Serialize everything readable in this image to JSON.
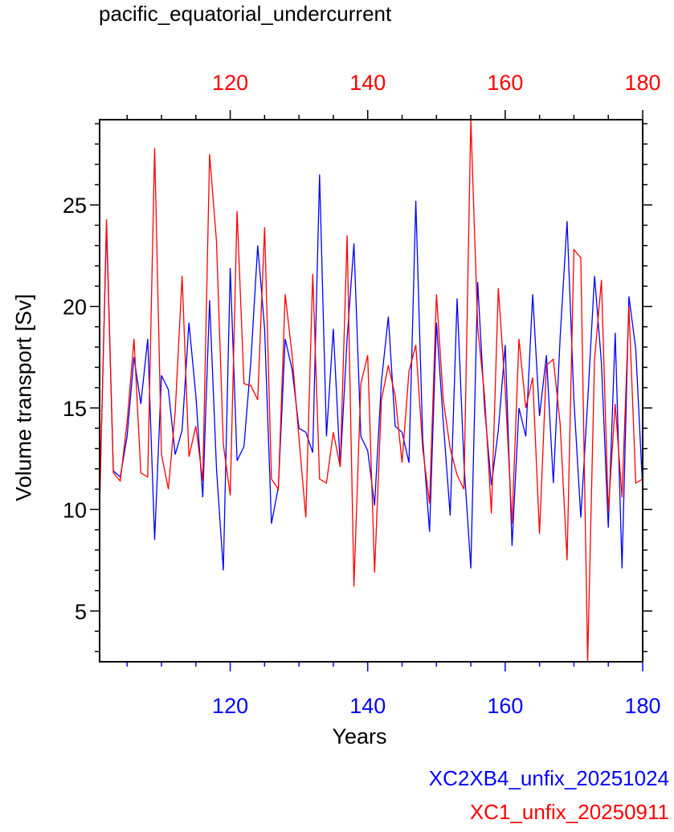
{
  "chart_data": {
    "type": "line",
    "title": "pacific_equatorial_undercurrent",
    "xlabel": "Years",
    "ylabel": "Volume transport [Sv]",
    "xlim": [
      101,
      180
    ],
    "ylim": [
      2.5,
      29.2
    ],
    "yticks": [
      5,
      10,
      15,
      20,
      25
    ],
    "xticks": [
      120,
      140,
      160,
      180
    ],
    "top_xticks": [
      120,
      140,
      160,
      180
    ],
    "top_axis_color": "#ff0000",
    "bottom_axis_color": "#0000ff",
    "series": [
      {
        "name": "XC2XB4_unfix_20251024",
        "color": "#0000ff",
        "x": [
          101,
          102,
          103,
          104,
          105,
          106,
          107,
          108,
          109,
          110,
          111,
          112,
          113,
          114,
          115,
          116,
          117,
          118,
          119,
          120,
          121,
          122,
          123,
          124,
          125,
          126,
          127,
          128,
          129,
          130,
          131,
          132,
          133,
          134,
          135,
          136,
          137,
          138,
          139,
          140,
          141,
          142,
          143,
          144,
          145,
          146,
          147,
          148,
          149,
          150,
          151,
          152,
          153,
          154,
          155,
          156,
          157,
          158,
          159,
          160,
          161,
          162,
          163,
          164,
          165,
          166,
          167,
          168,
          169,
          170,
          171,
          172,
          173,
          174,
          175,
          176,
          177,
          178,
          179,
          180
        ],
        "values": [
          10.3,
          24.0,
          11.9,
          11.6,
          13.6,
          17.5,
          15.2,
          18.4,
          8.5,
          16.6,
          15.9,
          12.7,
          13.9,
          19.2,
          15.6,
          10.6,
          20.3,
          12.0,
          7.0,
          21.9,
          12.4,
          13.1,
          17.3,
          23.0,
          18.9,
          9.3,
          11.1,
          18.4,
          16.9,
          14.0,
          13.8,
          12.8,
          26.5,
          13.6,
          18.9,
          12.1,
          18.4,
          23.1,
          13.6,
          12.9,
          10.2,
          16.3,
          19.5,
          14.1,
          13.8,
          12.3,
          25.2,
          13.5,
          8.9,
          19.2,
          14.3,
          9.7,
          20.4,
          12.3,
          7.1,
          21.2,
          15.0,
          11.2,
          13.9,
          18.1,
          8.2,
          15.0,
          13.6,
          20.6,
          14.6,
          17.6,
          11.3,
          18.5,
          24.2,
          15.4,
          9.6,
          15.3,
          21.5,
          17.2,
          9.1,
          18.7,
          7.1,
          20.5,
          17.9,
          11.0
        ]
      },
      {
        "name": "XC1_unfix_20250911",
        "color": "#ff0000",
        "x": [
          101,
          102,
          103,
          104,
          105,
          106,
          107,
          108,
          109,
          110,
          111,
          112,
          113,
          114,
          115,
          116,
          117,
          118,
          119,
          120,
          121,
          122,
          123,
          124,
          125,
          126,
          127,
          128,
          129,
          130,
          131,
          132,
          133,
          134,
          135,
          136,
          137,
          138,
          139,
          140,
          141,
          142,
          143,
          144,
          145,
          146,
          147,
          148,
          149,
          150,
          151,
          152,
          153,
          154,
          155,
          156,
          157,
          158,
          159,
          160,
          161,
          162,
          163,
          164,
          165,
          166,
          167,
          168,
          169,
          170,
          171,
          172,
          173,
          174,
          175,
          176,
          177,
          178,
          179,
          180
        ],
        "values": [
          10.0,
          24.3,
          11.8,
          11.4,
          14.3,
          18.4,
          11.8,
          11.6,
          27.8,
          12.7,
          11.0,
          14.8,
          21.5,
          12.6,
          14.1,
          11.4,
          27.5,
          23.2,
          13.2,
          10.7,
          24.7,
          16.2,
          16.1,
          15.4,
          23.9,
          11.5,
          11.0,
          20.6,
          17.6,
          13.5,
          9.6,
          21.6,
          11.5,
          11.3,
          13.8,
          12.1,
          23.5,
          6.2,
          16.2,
          17.6,
          6.9,
          15.4,
          17.1,
          15.6,
          12.3,
          16.8,
          18.1,
          13.0,
          10.3,
          20.6,
          15.4,
          13.0,
          11.7,
          11.0,
          29.2,
          19.0,
          15.6,
          9.8,
          20.9,
          15.9,
          9.3,
          18.4,
          15.0,
          16.5,
          8.8,
          17.1,
          17.4,
          14.2,
          7.5,
          22.8,
          22.4,
          2.5,
          17.4,
          21.3,
          9.9,
          15.2,
          10.6,
          20.0,
          11.3,
          11.5
        ]
      }
    ]
  }
}
